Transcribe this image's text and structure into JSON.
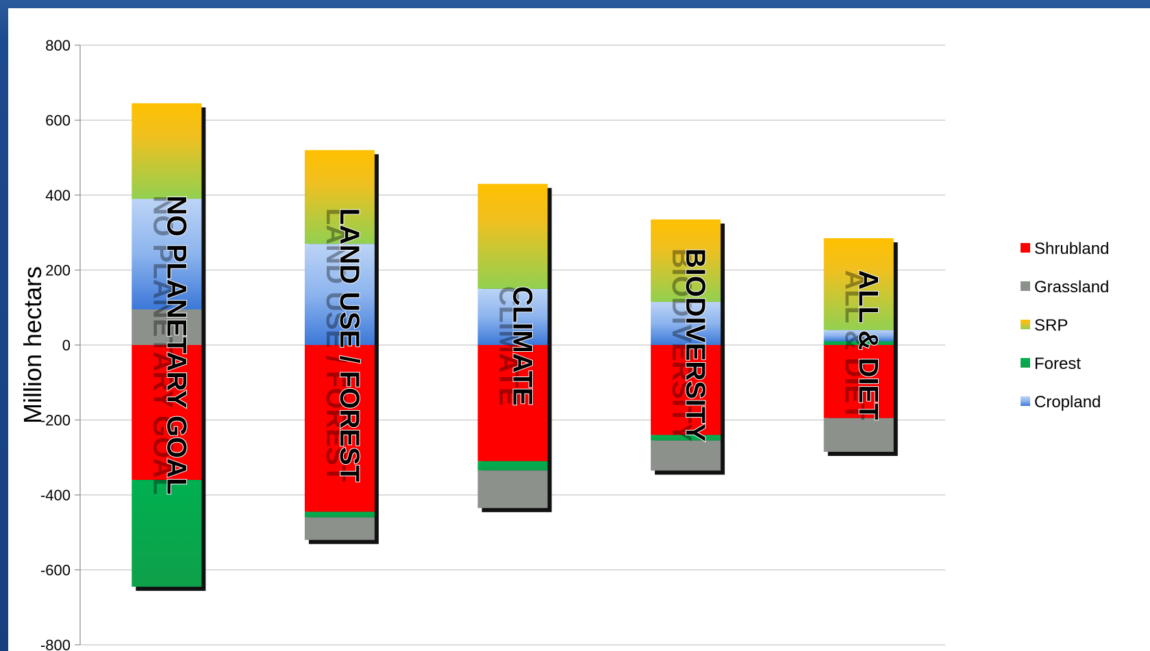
{
  "chart_data": {
    "type": "bar",
    "stacked": true,
    "title": "",
    "xlabel": "",
    "ylabel": "Million  hectars",
    "ylim": [
      -800,
      800
    ],
    "yticks": [
      800,
      600,
      400,
      200,
      0,
      -200,
      -400,
      -600,
      -800
    ],
    "grid": true,
    "legend_position": "right",
    "categories": [
      "NO PLANETARY GOAL",
      "LAND USE / FOREST",
      "CLIMATE",
      "BIODIVERSITY",
      "ALL & DIET"
    ],
    "series": [
      {
        "name": "Shrubland",
        "color": "#ff0000",
        "values": [
          -360,
          -445,
          -310,
          -240,
          -195
        ]
      },
      {
        "name": "Grassland",
        "color": "#8c918c",
        "values": [
          95,
          -60,
          -100,
          -80,
          -90
        ]
      },
      {
        "name": "SRP",
        "color": "#9ec93a",
        "values": [
          255,
          250,
          280,
          220,
          245
        ]
      },
      {
        "name": "Forest",
        "color": "#12a84a",
        "values": [
          -285,
          -15,
          -25,
          -15,
          10
        ]
      },
      {
        "name": "Cropland",
        "color": "#6f9fe6",
        "values": [
          295,
          270,
          150,
          115,
          30
        ]
      }
    ]
  }
}
